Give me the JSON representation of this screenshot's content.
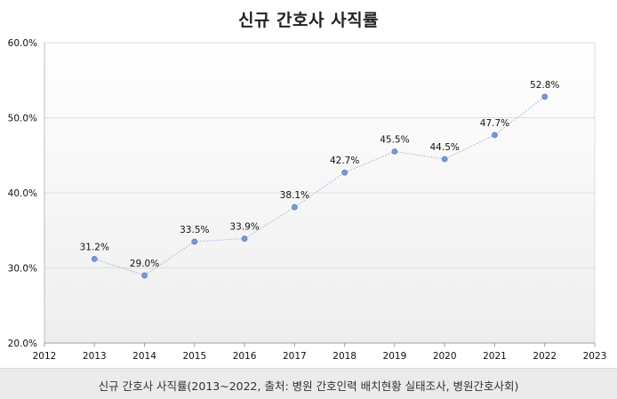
{
  "caption": "신규 간호사 사직률(2013~2022, 출처: 병원 간호인력 배치현황 실태조사, 병원간호사회)",
  "chart_data": {
    "type": "line",
    "title": "신규 간호사 사직률",
    "xlabel": "",
    "ylabel": "",
    "x": [
      2013,
      2014,
      2015,
      2016,
      2017,
      2018,
      2019,
      2020,
      2021,
      2022
    ],
    "series": [
      {
        "values": [
          31.2,
          29.0,
          33.5,
          33.9,
          38.1,
          42.7,
          45.5,
          44.5,
          47.7,
          52.8
        ]
      }
    ],
    "data_labels": [
      "31.2%",
      "29.0%",
      "33.5%",
      "33.9%",
      "38.1%",
      "42.7%",
      "45.5%",
      "44.5%",
      "47.7%",
      "52.8%"
    ],
    "xlim": [
      2012,
      2023
    ],
    "ylim": [
      20,
      60
    ],
    "x_ticks": [
      "2012",
      "2013",
      "2014",
      "2015",
      "2016",
      "2017",
      "2018",
      "2019",
      "2020",
      "2021",
      "2022",
      "2023"
    ],
    "y_ticks": [
      "20.0%",
      "30.0%",
      "40.0%",
      "50.0%",
      "60.0%"
    ],
    "grid": true,
    "legend": "none",
    "line_color": "#a9bde6",
    "marker_color": "#7b98d4",
    "plot_background_top": "#ffffff",
    "plot_background_bottom": "#eeeeee"
  }
}
